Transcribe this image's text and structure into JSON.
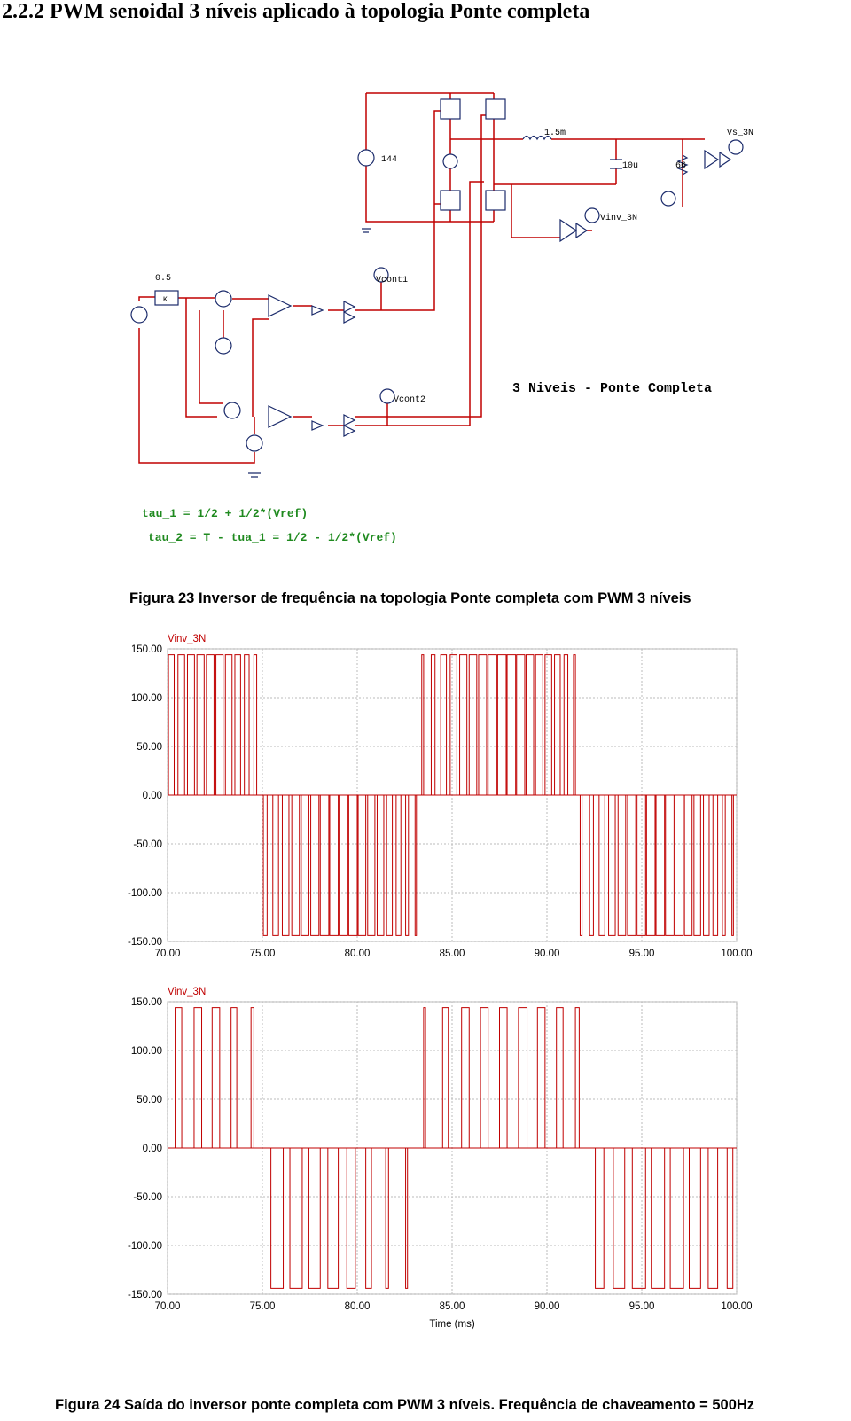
{
  "heading": "2.2.2  PWM senoidal 3 níveis aplicado à topologia Ponte completa",
  "figure23": {
    "labels": {
      "dc": "144",
      "inductor": "1.5m",
      "capacitor": "10u",
      "resistor": "66",
      "vs": "Vs_3N",
      "vinv": "Vinv_3N",
      "gain": "0.5",
      "k": "K",
      "vcont1": "Vcont1",
      "vcont2": "Vcont2",
      "title": "3 Niveis - Ponte Completa"
    },
    "equations": [
      "tau_1 = 1/2 + 1/2*(Vref)",
      "tau_2 = T - tua_1 =  1/2 - 1/2*(Vref)"
    ],
    "caption": "Figura 23 Inversor de frequência na topologia Ponte completa com PWM 3 níveis"
  },
  "chart_data": [
    {
      "type": "pulse",
      "title": "Vinv_3N",
      "color": "#c00000",
      "grid": true,
      "starts": [
        70.05,
        70.55,
        71.05,
        71.55,
        72.05,
        72.55,
        73.05,
        73.55,
        74.05,
        74.55,
        75.05,
        75.55,
        76.05,
        76.55,
        77.05,
        77.55,
        78.05,
        78.55,
        79.05,
        79.55,
        80.05,
        80.55,
        81.05,
        81.55,
        82.05,
        82.55,
        83.05,
        83.4,
        83.9,
        84.4,
        84.9,
        85.4,
        85.9,
        86.4,
        86.9,
        87.4,
        87.9,
        88.4,
        88.9,
        89.4,
        89.9,
        90.4,
        90.9,
        91.4,
        91.75,
        92.25,
        92.75,
        93.25,
        93.75,
        94.25,
        94.75,
        95.25,
        95.75,
        96.25,
        96.75,
        97.25,
        97.75,
        98.25,
        98.75,
        99.25,
        99.75
      ],
      "ends": [
        70.35,
        70.9,
        71.42,
        71.93,
        72.45,
        72.93,
        73.4,
        73.85,
        74.3,
        74.7,
        75.25,
        75.85,
        76.4,
        76.95,
        77.45,
        77.98,
        78.5,
        79.0,
        79.5,
        80.0,
        80.45,
        80.93,
        81.4,
        81.85,
        82.3,
        82.7,
        83.12,
        83.5,
        84.1,
        84.7,
        85.25,
        85.78,
        86.3,
        86.82,
        87.35,
        87.85,
        88.35,
        88.83,
        89.3,
        89.78,
        90.25,
        90.7,
        91.1,
        91.5,
        91.85,
        92.45,
        93.05,
        93.6,
        94.15,
        94.68,
        95.2,
        95.7,
        96.2,
        96.7,
        97.18,
        97.65,
        98.1,
        98.55,
        99.0,
        99.4,
        99.83
      ],
      "values": [
        144,
        144,
        144,
        144,
        144,
        144,
        144,
        144,
        144,
        144,
        -144,
        -144,
        -144,
        -144,
        -144,
        -144,
        -144,
        -144,
        -144,
        -144,
        -144,
        -144,
        -144,
        -144,
        -144,
        -144,
        -144,
        144,
        144,
        144,
        144,
        144,
        144,
        144,
        144,
        144,
        144,
        144,
        144,
        144,
        144,
        144,
        144,
        144,
        -144,
        -144,
        -144,
        -144,
        -144,
        -144,
        -144,
        -144,
        -144,
        -144,
        -144,
        -144,
        -144,
        -144,
        -144,
        -144,
        -144
      ],
      "xlim": [
        70,
        100
      ],
      "xticks": [
        {
          "value": 70,
          "label": "70.00"
        },
        {
          "value": 75,
          "label": "75.00"
        },
        {
          "value": 80,
          "label": "80.00"
        },
        {
          "value": 85,
          "label": "85.00"
        },
        {
          "value": 90,
          "label": "90.00"
        },
        {
          "value": 95,
          "label": "95.00"
        },
        {
          "value": 100,
          "label": "100.00"
        }
      ],
      "ylim": [
        -150,
        150
      ],
      "yticks": [
        {
          "value": 150,
          "label": "150.00"
        },
        {
          "value": 100,
          "label": "100.00"
        },
        {
          "value": 50,
          "label": "50.00"
        },
        {
          "value": 0,
          "label": "0.00"
        },
        {
          "value": -50,
          "label": "-50.00"
        },
        {
          "value": -100,
          "label": "-100.00"
        },
        {
          "value": -150,
          "label": "-150.00"
        }
      ]
    },
    {
      "type": "pulse",
      "title": "Vinv_3N",
      "color": "#c00000",
      "grid": true,
      "xlabel": "Time (ms)",
      "starts": [
        70.4,
        71.4,
        72.35,
        73.35,
        74.4,
        75.45,
        76.45,
        77.45,
        78.45,
        79.45,
        80.45,
        81.5,
        82.55,
        83.5,
        84.5,
        85.5,
        86.5,
        87.5,
        88.5,
        89.5,
        90.5,
        91.5,
        92.55,
        93.5,
        94.5,
        95.5,
        96.5,
        97.5,
        98.5,
        99.5
      ],
      "ends": [
        70.75,
        71.8,
        72.75,
        73.65,
        74.55,
        76.1,
        77.1,
        78.05,
        79.0,
        79.9,
        80.75,
        81.65,
        82.65,
        83.6,
        84.8,
        85.9,
        86.9,
        87.9,
        88.95,
        89.9,
        90.85,
        91.7,
        93.0,
        94.1,
        95.2,
        96.2,
        97.2,
        98.1,
        99.0,
        99.8
      ],
      "values": [
        144,
        144,
        144,
        144,
        144,
        -144,
        -144,
        -144,
        -144,
        -144,
        -144,
        -144,
        -144,
        144,
        144,
        144,
        144,
        144,
        144,
        144,
        144,
        144,
        -144,
        -144,
        -144,
        -144,
        -144,
        -144,
        -144,
        -144
      ],
      "xlim": [
        70,
        100
      ],
      "xticks": [
        {
          "value": 70,
          "label": "70.00"
        },
        {
          "value": 75,
          "label": "75.00"
        },
        {
          "value": 80,
          "label": "80.00"
        },
        {
          "value": 85,
          "label": "85.00"
        },
        {
          "value": 90,
          "label": "90.00"
        },
        {
          "value": 95,
          "label": "95.00"
        },
        {
          "value": 100,
          "label": "100.00"
        }
      ],
      "ylim": [
        -150,
        150
      ],
      "yticks": [
        {
          "value": 150,
          "label": "150.00"
        },
        {
          "value": 100,
          "label": "100.00"
        },
        {
          "value": 50,
          "label": "50.00"
        },
        {
          "value": 0,
          "label": "0.00"
        },
        {
          "value": -50,
          "label": "-50.00"
        },
        {
          "value": -100,
          "label": "-100.00"
        },
        {
          "value": -150,
          "label": "-150.00"
        }
      ]
    }
  ],
  "caption24": "Figura 24 Saída do inversor ponte completa com PWM 3 níveis. Frequência de chaveamento = 500Hz"
}
